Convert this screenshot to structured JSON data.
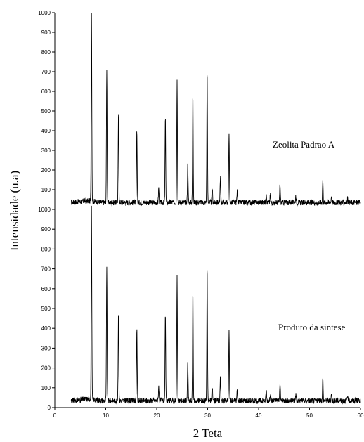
{
  "chart_data": {
    "type": "line",
    "xlabel": "2 Teta",
    "ylabel": "Intensidade (u.a)",
    "xlim": [
      0,
      60
    ],
    "xticks": [
      "0",
      "10",
      "20",
      "30",
      "40",
      "50",
      "60"
    ],
    "grid": false,
    "legend": "none",
    "line_color": "#000000",
    "panels": [
      {
        "annotation": "Zeolita Padrao A",
        "ylim": [
          0,
          1000
        ],
        "yticks": [
          "100",
          "200",
          "300",
          "400",
          "500",
          "600",
          "700",
          "800",
          "900",
          "1000"
        ],
        "baseline": 35,
        "peaks": [
          {
            "x": 7.2,
            "y": 1000
          },
          {
            "x": 10.2,
            "y": 720
          },
          {
            "x": 12.5,
            "y": 495
          },
          {
            "x": 16.1,
            "y": 400
          },
          {
            "x": 20.4,
            "y": 110
          },
          {
            "x": 21.7,
            "y": 465
          },
          {
            "x": 24.0,
            "y": 655
          },
          {
            "x": 26.1,
            "y": 235
          },
          {
            "x": 27.1,
            "y": 590
          },
          {
            "x": 29.9,
            "y": 715
          },
          {
            "x": 30.9,
            "y": 110
          },
          {
            "x": 32.5,
            "y": 165
          },
          {
            "x": 34.2,
            "y": 400
          },
          {
            "x": 35.8,
            "y": 90
          },
          {
            "x": 41.5,
            "y": 90
          },
          {
            "x": 42.3,
            "y": 75
          },
          {
            "x": 44.2,
            "y": 130
          },
          {
            "x": 47.3,
            "y": 70
          },
          {
            "x": 52.6,
            "y": 150
          },
          {
            "x": 54.3,
            "y": 70
          },
          {
            "x": 57.5,
            "y": 60
          }
        ]
      },
      {
        "annotation": "Produto da sintese",
        "ylim": [
          0,
          1000
        ],
        "yticks": [
          "0",
          "100",
          "200",
          "300",
          "400",
          "500",
          "600",
          "700",
          "800",
          "900",
          "1000"
        ],
        "baseline": 35,
        "peaks": [
          {
            "x": 7.2,
            "y": 1000
          },
          {
            "x": 10.2,
            "y": 720
          },
          {
            "x": 12.5,
            "y": 495
          },
          {
            "x": 16.1,
            "y": 400
          },
          {
            "x": 20.4,
            "y": 110
          },
          {
            "x": 21.7,
            "y": 465
          },
          {
            "x": 24.0,
            "y": 655
          },
          {
            "x": 26.1,
            "y": 235
          },
          {
            "x": 27.1,
            "y": 590
          },
          {
            "x": 29.9,
            "y": 715
          },
          {
            "x": 30.9,
            "y": 110
          },
          {
            "x": 32.5,
            "y": 165
          },
          {
            "x": 34.2,
            "y": 400
          },
          {
            "x": 35.8,
            "y": 90
          },
          {
            "x": 41.5,
            "y": 90
          },
          {
            "x": 42.3,
            "y": 75
          },
          {
            "x": 44.2,
            "y": 130
          },
          {
            "x": 47.3,
            "y": 70
          },
          {
            "x": 52.6,
            "y": 150
          },
          {
            "x": 54.3,
            "y": 70
          },
          {
            "x": 57.5,
            "y": 60
          }
        ]
      }
    ]
  }
}
